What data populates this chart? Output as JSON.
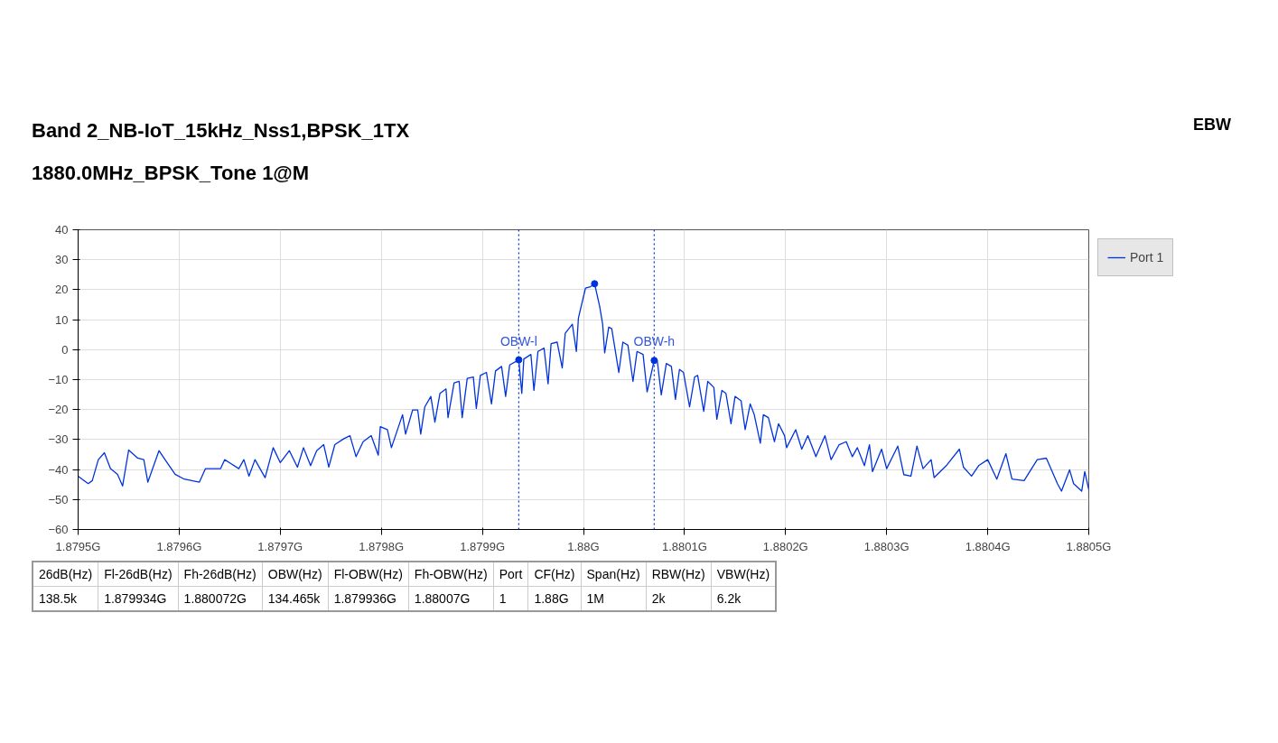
{
  "chart_data": {
    "type": "line",
    "title": "Band 2_NB-IoT_15kHz_Nss1,BPSK_1TX",
    "subtitle": "1880.0MHz_BPSK_Tone 1@M",
    "xlim": [
      1.8795,
      1.8805
    ],
    "xticks": [
      {
        "value": 1.8795,
        "label": "1.8795G"
      },
      {
        "value": 1.8796,
        "label": "1.8796G"
      },
      {
        "value": 1.8797,
        "label": "1.8797G"
      },
      {
        "value": 1.8798,
        "label": "1.8798G"
      },
      {
        "value": 1.8799,
        "label": "1.8799G"
      },
      {
        "value": 1.88,
        "label": "1.88G"
      },
      {
        "value": 1.8801,
        "label": "1.8801G"
      },
      {
        "value": 1.8802,
        "label": "1.8802G"
      },
      {
        "value": 1.8803,
        "label": "1.8803G"
      },
      {
        "value": 1.8804,
        "label": "1.8804G"
      },
      {
        "value": 1.8805,
        "label": "1.8805G"
      }
    ],
    "ylim": [
      -60,
      40
    ],
    "yticks": [
      -60,
      -50,
      -40,
      -30,
      -20,
      -10,
      0,
      10,
      20,
      30,
      40
    ],
    "grid": true,
    "legend": "top right",
    "series": [
      {
        "name": "Port 1",
        "color": "#0033dd",
        "marker": "none",
        "x": [
          1.8795,
          1.87951,
          1.879514,
          1.87952,
          1.879526,
          1.879532,
          1.879539,
          1.879544,
          1.87955,
          1.879559,
          1.879565,
          1.879569,
          1.87958,
          1.879586,
          1.879596,
          1.879605,
          1.87962,
          1.879626,
          1.879641,
          1.879645,
          1.879659,
          1.879664,
          1.879669,
          1.879675,
          1.879685,
          1.879693,
          1.8797,
          1.879709,
          1.879717,
          1.879723,
          1.87973,
          1.879736,
          1.879743,
          1.879748,
          1.879754,
          1.879763,
          1.879769,
          1.879775,
          1.879782,
          1.87979,
          1.879797,
          1.879799,
          1.879806,
          1.87981,
          1.879821,
          1.879824,
          1.879831,
          1.879836,
          1.879839,
          1.879843,
          1.879849,
          1.879853,
          1.879858,
          1.879864,
          1.879866,
          1.879872,
          1.879877,
          1.87988,
          1.879885,
          1.879891,
          1.879894,
          1.879898,
          1.879904,
          1.879909,
          1.879913,
          1.879919,
          1.879923,
          1.879927,
          1.879936,
          1.879939,
          1.879941,
          1.879948,
          1.879951,
          1.879955,
          1.879961,
          1.879965,
          1.879968,
          1.879974,
          1.879979,
          1.879982,
          1.879989,
          1.879993,
          1.879995,
          1.880002,
          1.880007,
          1.880011,
          1.880016,
          1.880019,
          1.880021,
          1.880025,
          1.880028,
          1.880035,
          1.880039,
          1.880044,
          1.880049,
          1.880053,
          1.880059,
          1.880063,
          1.88007,
          1.880073,
          1.880077,
          1.880082,
          1.880087,
          1.880091,
          1.880095,
          1.880099,
          1.880105,
          1.88011,
          1.880113,
          1.880119,
          1.880123,
          1.880129,
          1.880132,
          1.880137,
          1.880141,
          1.880146,
          1.88015,
          1.880156,
          1.88016,
          1.880165,
          1.880169,
          1.880175,
          1.880178,
          1.880183,
          1.880189,
          1.880193,
          1.880199,
          1.880201,
          1.88021,
          1.880216,
          1.880222,
          1.88023,
          1.880239,
          1.880245,
          1.880253,
          1.88026,
          1.880266,
          1.880271,
          1.880278,
          1.880283,
          1.880286,
          1.880295,
          1.8803,
          1.880311,
          1.880317,
          1.880324,
          1.88033,
          1.880336,
          1.880344,
          1.880347,
          1.880359,
          1.880372,
          1.880376,
          1.880384,
          1.880391,
          1.8804,
          1.880409,
          1.880418,
          1.880424,
          1.880436,
          1.880449,
          1.880458,
          1.880469,
          1.880473,
          1.880481,
          1.880485,
          1.880493,
          1.880496,
          1.8805
        ],
        "values": [
          -42.2,
          -44.7,
          -43.7,
          -36.7,
          -34.4,
          -39.7,
          -41.6,
          -45.5,
          -33.5,
          -36.2,
          -36.7,
          -44.2,
          -33.7,
          -36.7,
          -41.6,
          -43.2,
          -44.2,
          -39.7,
          -39.7,
          -36.7,
          -39.7,
          -36.7,
          -42.2,
          -36.7,
          -42.7,
          -32.7,
          -37.7,
          -33.7,
          -39.2,
          -32.7,
          -38.7,
          -33.7,
          -31.7,
          -39.2,
          -31.7,
          -29.7,
          -28.7,
          -35.7,
          -30.7,
          -28.7,
          -35.2,
          -25.7,
          -26.7,
          -32.7,
          -21.7,
          -28.2,
          -20.1,
          -20.1,
          -28.2,
          -19.1,
          -15.6,
          -24.2,
          -14.6,
          -13.1,
          -22.7,
          -11.1,
          -10.6,
          -22.7,
          -9.6,
          -9.1,
          -19.6,
          -8.6,
          -7.6,
          -18.1,
          -7.1,
          -5.6,
          -15.6,
          -5.1,
          -3.4,
          -14.6,
          -3.1,
          -1.6,
          -13.6,
          -0.6,
          0.5,
          -11.4,
          2.0,
          2.5,
          -6.1,
          5.5,
          8.5,
          -0.6,
          10.5,
          20.5,
          21.0,
          22.0,
          14.5,
          8.5,
          -1.1,
          7.5,
          7.0,
          -7.6,
          2.5,
          1.5,
          -10.6,
          -0.6,
          -1.6,
          -14.1,
          -3.6,
          -3.6,
          -15.1,
          -4.6,
          -5.6,
          -16.6,
          -6.6,
          -7.6,
          -19.1,
          -9.1,
          -8.6,
          -20.6,
          -10.6,
          -12.6,
          -23.2,
          -13.6,
          -14.6,
          -24.7,
          -15.6,
          -17.1,
          -26.7,
          -18.1,
          -21.7,
          -31.2,
          -21.7,
          -22.7,
          -30.7,
          -24.7,
          -28.7,
          -32.7,
          -26.7,
          -33.2,
          -28.7,
          -35.7,
          -28.7,
          -36.7,
          -31.7,
          -30.7,
          -35.7,
          -32.7,
          -38.7,
          -31.7,
          -40.7,
          -33.2,
          -39.7,
          -32.2,
          -41.7,
          -42.2,
          -32.2,
          -39.7,
          -36.7,
          -42.7,
          -38.7,
          -33.2,
          -39.2,
          -42.2,
          -38.7,
          -36.7,
          -43.2,
          -34.7,
          -43.2,
          -43.7,
          -36.7,
          -36.2,
          -44.7,
          -47.2,
          -40.1,
          -44.7,
          -47.2,
          -40.7,
          -46.7
        ]
      },
      {
        "color": "#0033dd",
        "type": "scatter",
        "marker": "circle",
        "x": [
          1.879936,
          1.880011,
          1.88007
        ],
        "values": [
          -3.4,
          22.0,
          -3.6
        ]
      }
    ],
    "ref_lines": [
      {
        "axis": "x",
        "value": 1.879936,
        "label": "OBW-l",
        "color": "#0033dd",
        "line_style": "dotted"
      },
      {
        "axis": "x",
        "value": 1.88007,
        "label": "OBW-h",
        "color": "#0033dd",
        "line_style": "dotted"
      }
    ],
    "annotations": [
      "EBW",
      "26dB(Hz)",
      "Fl-26dB(Hz)",
      "Fh-26dB(Hz)",
      "OBW(Hz)",
      "Fl-OBW(Hz)",
      "Fh-OBW(Hz)",
      "Port",
      "CF(Hz)",
      "Span(Hz)",
      "RBW(Hz)",
      "VBW(Hz)",
      "138.5k",
      "1.879934G",
      "1.880072G",
      "134.465k",
      "1.879936G",
      "1.88007G",
      "1",
      "1.88G",
      "1M",
      "2k",
      "6.2k"
    ]
  }
}
